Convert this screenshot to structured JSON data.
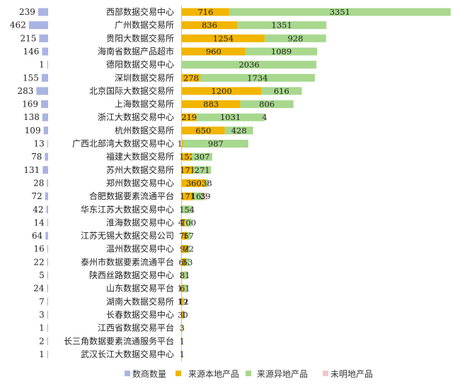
{
  "chart_data": {
    "type": "bar",
    "orientation": "horizontal",
    "categories": [
      "西部数据交易中心",
      "广州数据交易所",
      "贵阳大数据交易所",
      "海南省数据产品超市",
      "德阳数据交易中心",
      "深圳数据交易所",
      "北京国际大数据交易所",
      "上海数据交易所",
      "浙江大数据交易中心",
      "杭州数据交易所",
      "广西北部湾大数据交易中心",
      "福建大数据交易所",
      "苏州大数据交易所",
      "郑州数据交易中心",
      "合肥数据要素流通平台",
      "华东江苏大数据交易中心",
      "淮海数据交易中心",
      "江苏无锡大数据交易公司",
      "温州数据交易中心",
      "泰州市数据要素流通平台",
      "陕西丝路数据交易中心",
      "山东数据交易平台",
      "湖南大数据交易所",
      "长春数据交易中心",
      "江西省数据交易平台",
      "长三角数据要素流通服务平台",
      "武汉长江大数据交易中心"
    ],
    "merchant_count": {
      "name": "数商数量",
      "values": [
        239,
        462,
        215,
        146,
        1,
        155,
        283,
        169,
        138,
        109,
        13,
        78,
        131,
        28,
        72,
        42,
        14,
        64,
        16,
        22,
        5,
        24,
        7,
        3,
        1,
        2,
        1
      ]
    },
    "series": [
      {
        "name": "来源本地产品",
        "values": [
          716,
          836,
          1254,
          960,
          null,
          278,
          1200,
          883,
          219,
          650,
          19,
          152,
          171,
          360,
          171,
          null,
          47,
          76,
          94,
          60,
          3,
          17,
          19,
          30,
          3,
          1,
          1
        ]
      },
      {
        "name": "来源异地产品",
        "values": [
          3351,
          1351,
          928,
          1089,
          2036,
          1734,
          616,
          806,
          1031,
          428,
          987,
          307,
          271,
          38,
          165,
          154,
          100,
          57,
          22,
          53,
          81,
          61,
          12,
          1,
          null,
          null,
          null
        ]
      },
      {
        "name": "未明地产品",
        "values": [
          null,
          null,
          null,
          null,
          null,
          null,
          null,
          null,
          4,
          null,
          null,
          null,
          null,
          null,
          39,
          null,
          null,
          null,
          null,
          null,
          null,
          null,
          null,
          null,
          null,
          null,
          null
        ]
      }
    ],
    "legend_position": "bottom",
    "grid": false,
    "colors": {
      "merchant": "#aab4e3",
      "local": "#f2b500",
      "remote": "#a8d88e",
      "unknown": "#f5c6cc"
    }
  }
}
